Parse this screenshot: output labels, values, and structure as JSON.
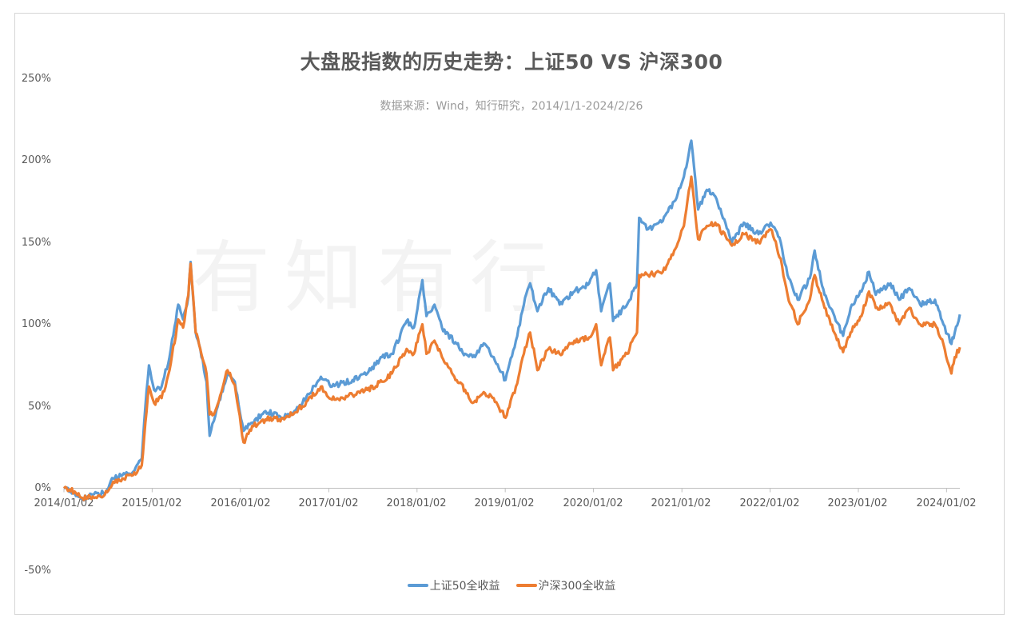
{
  "chart_data": {
    "type": "line",
    "title": "大盘股指数的历史走势：上证50 VS 沪深300",
    "subtitle": "数据来源：Wind，知行研究，2014/1/1-2024/2/26",
    "watermark": "有知有行",
    "ylim": [
      -50,
      250
    ],
    "yticks": [
      "250%",
      "200%",
      "150%",
      "100%",
      "50%",
      "0%",
      "-50%"
    ],
    "ytick_values": [
      250,
      200,
      150,
      100,
      50,
      0,
      -50
    ],
    "xlim": [
      "2014-01-02",
      "2024-02-26"
    ],
    "xticks": [
      "2014/01/02",
      "2015/01/02",
      "2016/01/02",
      "2017/01/02",
      "2018/01/02",
      "2019/01/02",
      "2020/01/02",
      "2021/01/02",
      "2022/01/02",
      "2023/01/02",
      "2024/01/02"
    ],
    "grid": false,
    "legend_position": "bottom",
    "series": [
      {
        "name": "上证50全收益",
        "color": "#5b9bd5",
        "points": [
          [
            "2014-01-02",
            0
          ],
          [
            "2014-02-15",
            -3
          ],
          [
            "2014-03-20",
            -6
          ],
          [
            "2014-05-01",
            -4
          ],
          [
            "2014-06-20",
            -3
          ],
          [
            "2014-07-25",
            6
          ],
          [
            "2014-09-01",
            8
          ],
          [
            "2014-10-15",
            10
          ],
          [
            "2014-11-20",
            18
          ],
          [
            "2014-12-05",
            50
          ],
          [
            "2014-12-20",
            75
          ],
          [
            "2015-01-10",
            60
          ],
          [
            "2015-02-10",
            62
          ],
          [
            "2015-03-15",
            80
          ],
          [
            "2015-04-20",
            112
          ],
          [
            "2015-05-10",
            103
          ],
          [
            "2015-06-01",
            117
          ],
          [
            "2015-06-10",
            138
          ],
          [
            "2015-07-01",
            95
          ],
          [
            "2015-07-20",
            85
          ],
          [
            "2015-08-15",
            65
          ],
          [
            "2015-08-28",
            32
          ],
          [
            "2015-09-20",
            44
          ],
          [
            "2015-11-10",
            70
          ],
          [
            "2015-12-10",
            65
          ],
          [
            "2016-01-15",
            35
          ],
          [
            "2016-02-20",
            40
          ],
          [
            "2016-04-15",
            47
          ],
          [
            "2016-07-01",
            43
          ],
          [
            "2016-09-15",
            52
          ],
          [
            "2016-11-30",
            68
          ],
          [
            "2017-01-15",
            62
          ],
          [
            "2017-04-10",
            66
          ],
          [
            "2017-06-10",
            70
          ],
          [
            "2017-08-10",
            80
          ],
          [
            "2017-09-20",
            82
          ],
          [
            "2017-11-20",
            102
          ],
          [
            "2017-12-20",
            98
          ],
          [
            "2018-01-24",
            127
          ],
          [
            "2018-02-10",
            105
          ],
          [
            "2018-03-15",
            112
          ],
          [
            "2018-04-15",
            98
          ],
          [
            "2018-06-15",
            88
          ],
          [
            "2018-07-20",
            82
          ],
          [
            "2018-08-20",
            80
          ],
          [
            "2018-10-10",
            88
          ],
          [
            "2018-11-15",
            80
          ],
          [
            "2019-01-03",
            66
          ],
          [
            "2019-02-15",
            90
          ],
          [
            "2019-03-20",
            112
          ],
          [
            "2019-04-15",
            125
          ],
          [
            "2019-05-15",
            108
          ],
          [
            "2019-06-30",
            122
          ],
          [
            "2019-08-15",
            112
          ],
          [
            "2019-10-15",
            120
          ],
          [
            "2019-12-15",
            125
          ],
          [
            "2020-01-13",
            133
          ],
          [
            "2020-02-03",
            108
          ],
          [
            "2020-03-10",
            125
          ],
          [
            "2020-03-23",
            102
          ],
          [
            "2020-05-20",
            112
          ],
          [
            "2020-06-30",
            125
          ],
          [
            "2020-07-09",
            165
          ],
          [
            "2020-08-15",
            158
          ],
          [
            "2020-10-15",
            163
          ],
          [
            "2020-12-01",
            175
          ],
          [
            "2021-01-10",
            190
          ],
          [
            "2021-02-10",
            212
          ],
          [
            "2021-03-10",
            170
          ],
          [
            "2021-04-15",
            182
          ],
          [
            "2021-05-20",
            178
          ],
          [
            "2021-07-28",
            150
          ],
          [
            "2021-09-15",
            162
          ],
          [
            "2021-11-15",
            155
          ],
          [
            "2022-01-04",
            162
          ],
          [
            "2022-02-15",
            150
          ],
          [
            "2022-03-15",
            130
          ],
          [
            "2022-04-26",
            115
          ],
          [
            "2022-06-15",
            128
          ],
          [
            "2022-07-05",
            145
          ],
          [
            "2022-08-15",
            118
          ],
          [
            "2022-10-31",
            93
          ],
          [
            "2022-12-01",
            110
          ],
          [
            "2023-01-15",
            120
          ],
          [
            "2023-02-15",
            132
          ],
          [
            "2023-03-15",
            118
          ],
          [
            "2023-05-15",
            125
          ],
          [
            "2023-06-20",
            115
          ],
          [
            "2023-08-01",
            122
          ],
          [
            "2023-09-15",
            112
          ],
          [
            "2023-11-15",
            115
          ],
          [
            "2023-12-20",
            100
          ],
          [
            "2024-01-22",
            88
          ],
          [
            "2024-02-05",
            95
          ],
          [
            "2024-02-26",
            106
          ]
        ]
      },
      {
        "name": "沪深300全收益",
        "color": "#ed7d31",
        "points": [
          [
            "2014-01-02",
            0
          ],
          [
            "2014-02-15",
            -2
          ],
          [
            "2014-03-20",
            -6
          ],
          [
            "2014-05-01",
            -5
          ],
          [
            "2014-06-20",
            -4
          ],
          [
            "2014-07-25",
            4
          ],
          [
            "2014-09-01",
            6
          ],
          [
            "2014-10-15",
            8
          ],
          [
            "2014-11-20",
            14
          ],
          [
            "2014-12-05",
            40
          ],
          [
            "2014-12-20",
            62
          ],
          [
            "2015-01-10",
            52
          ],
          [
            "2015-02-10",
            55
          ],
          [
            "2015-03-15",
            72
          ],
          [
            "2015-04-20",
            103
          ],
          [
            "2015-05-10",
            98
          ],
          [
            "2015-06-01",
            118
          ],
          [
            "2015-06-10",
            137
          ],
          [
            "2015-07-01",
            95
          ],
          [
            "2015-07-20",
            85
          ],
          [
            "2015-08-15",
            70
          ],
          [
            "2015-08-28",
            45
          ],
          [
            "2015-09-20",
            47
          ],
          [
            "2015-11-10",
            72
          ],
          [
            "2015-12-10",
            63
          ],
          [
            "2016-01-15",
            28
          ],
          [
            "2016-02-20",
            38
          ],
          [
            "2016-04-15",
            42
          ],
          [
            "2016-07-01",
            42
          ],
          [
            "2016-09-15",
            50
          ],
          [
            "2016-11-30",
            62
          ],
          [
            "2017-01-15",
            54
          ],
          [
            "2017-04-10",
            57
          ],
          [
            "2017-06-10",
            60
          ],
          [
            "2017-08-10",
            65
          ],
          [
            "2017-09-20",
            70
          ],
          [
            "2017-11-20",
            85
          ],
          [
            "2017-12-20",
            82
          ],
          [
            "2018-01-24",
            100
          ],
          [
            "2018-02-10",
            82
          ],
          [
            "2018-03-15",
            90
          ],
          [
            "2018-04-15",
            80
          ],
          [
            "2018-06-15",
            66
          ],
          [
            "2018-07-20",
            60
          ],
          [
            "2018-08-20",
            52
          ],
          [
            "2018-10-10",
            58
          ],
          [
            "2018-11-15",
            55
          ],
          [
            "2019-01-03",
            43
          ],
          [
            "2019-02-15",
            62
          ],
          [
            "2019-03-20",
            82
          ],
          [
            "2019-04-15",
            95
          ],
          [
            "2019-05-15",
            72
          ],
          [
            "2019-06-30",
            85
          ],
          [
            "2019-08-15",
            82
          ],
          [
            "2019-10-15",
            90
          ],
          [
            "2019-12-15",
            92
          ],
          [
            "2020-01-13",
            100
          ],
          [
            "2020-02-03",
            75
          ],
          [
            "2020-03-10",
            92
          ],
          [
            "2020-03-23",
            72
          ],
          [
            "2020-05-20",
            82
          ],
          [
            "2020-06-30",
            95
          ],
          [
            "2020-07-09",
            130
          ],
          [
            "2020-08-15",
            130
          ],
          [
            "2020-10-15",
            132
          ],
          [
            "2020-12-01",
            145
          ],
          [
            "2021-01-10",
            160
          ],
          [
            "2021-02-10",
            190
          ],
          [
            "2021-03-10",
            152
          ],
          [
            "2021-04-15",
            160
          ],
          [
            "2021-05-20",
            162
          ],
          [
            "2021-07-28",
            148
          ],
          [
            "2021-09-15",
            155
          ],
          [
            "2021-11-15",
            150
          ],
          [
            "2022-01-04",
            158
          ],
          [
            "2022-02-15",
            140
          ],
          [
            "2022-03-15",
            118
          ],
          [
            "2022-04-26",
            100
          ],
          [
            "2022-06-15",
            115
          ],
          [
            "2022-07-05",
            130
          ],
          [
            "2022-08-15",
            110
          ],
          [
            "2022-10-31",
            83
          ],
          [
            "2022-12-01",
            95
          ],
          [
            "2023-01-15",
            105
          ],
          [
            "2023-02-15",
            120
          ],
          [
            "2023-03-15",
            110
          ],
          [
            "2023-05-15",
            112
          ],
          [
            "2023-06-20",
            100
          ],
          [
            "2023-08-01",
            110
          ],
          [
            "2023-09-15",
            100
          ],
          [
            "2023-11-15",
            100
          ],
          [
            "2023-12-20",
            88
          ],
          [
            "2024-01-22",
            70
          ],
          [
            "2024-02-05",
            80
          ],
          [
            "2024-02-26",
            86
          ]
        ]
      }
    ]
  }
}
